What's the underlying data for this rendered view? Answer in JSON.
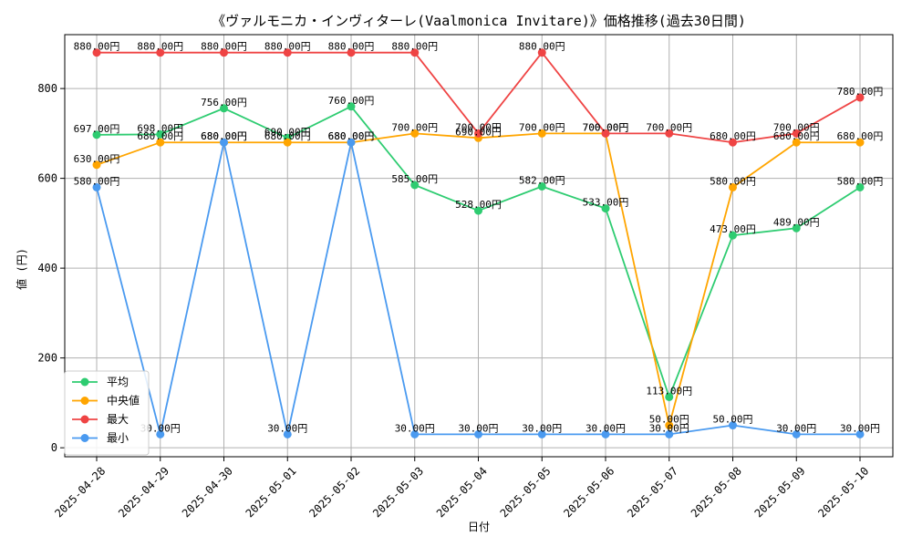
{
  "chart_data": {
    "type": "line",
    "title": "《ヴァルモニカ・インヴィターレ(Vaalmonica Invitare)》価格推移(過去30日間)",
    "xlabel": "日付",
    "ylabel": "値 (円)",
    "ylim": [
      -20,
      920
    ],
    "yticks": [
      0,
      200,
      400,
      600,
      800
    ],
    "grid": true,
    "legend_position": "lower-left",
    "categories": [
      "2025-04-28",
      "2025-04-29",
      "2025-04-30",
      "2025-05-01",
      "2025-05-02",
      "2025-05-03",
      "2025-05-04",
      "2025-05-05",
      "2025-05-06",
      "2025-05-07",
      "2025-05-08",
      "2025-05-09",
      "2025-05-10"
    ],
    "series": [
      {
        "name": "平均",
        "color": "#2ecc71",
        "values": [
          697,
          698,
          756,
          690,
          760,
          585,
          528,
          582,
          533,
          113,
          473,
          489,
          580
        ],
        "labels": [
          "697.00円",
          "698.00円",
          "756.00円",
          "690.00円",
          "760.00円",
          "585.00円",
          "528.00円",
          "582.00円",
          "533.00円",
          "113.00円",
          "473.00円",
          "489.00円",
          "580.00円"
        ]
      },
      {
        "name": "中央値",
        "color": "#ffa500",
        "values": [
          630,
          680,
          680,
          680,
          680,
          700,
          690,
          700,
          700,
          50,
          580,
          680,
          680
        ],
        "labels": [
          "630.00円",
          "680.00円",
          "680.00円",
          "680.00円",
          "680.00円",
          "700.00円",
          "690.00円",
          "700.00円",
          "700.00円",
          "50.00円",
          "580.00円",
          "680.00円",
          "680.00円"
        ]
      },
      {
        "name": "最大",
        "color": "#ef4444",
        "values": [
          880,
          880,
          880,
          880,
          880,
          880,
          700,
          880,
          700,
          700,
          680,
          700,
          780
        ],
        "labels": [
          "880.00円",
          "880.00円",
          "880.00円",
          "880.00円",
          "880.00円",
          "880.00円",
          "700.00円",
          "880.00円",
          "700.00円",
          "700.00円",
          "680.00円",
          "700.00円",
          "780.00円"
        ]
      },
      {
        "name": "最小",
        "color": "#4a9af0",
        "values": [
          580,
          30,
          680,
          30,
          680,
          30,
          30,
          30,
          30,
          30,
          50,
          30,
          30
        ],
        "labels": [
          "580.00円",
          "30.00円",
          "680.00円",
          "30.00円",
          "680.00円",
          "30.00円",
          "30.00円",
          "30.00円",
          "30.00円",
          "30.00円",
          "50.00円",
          "30.00円",
          "30.00円"
        ]
      }
    ]
  }
}
